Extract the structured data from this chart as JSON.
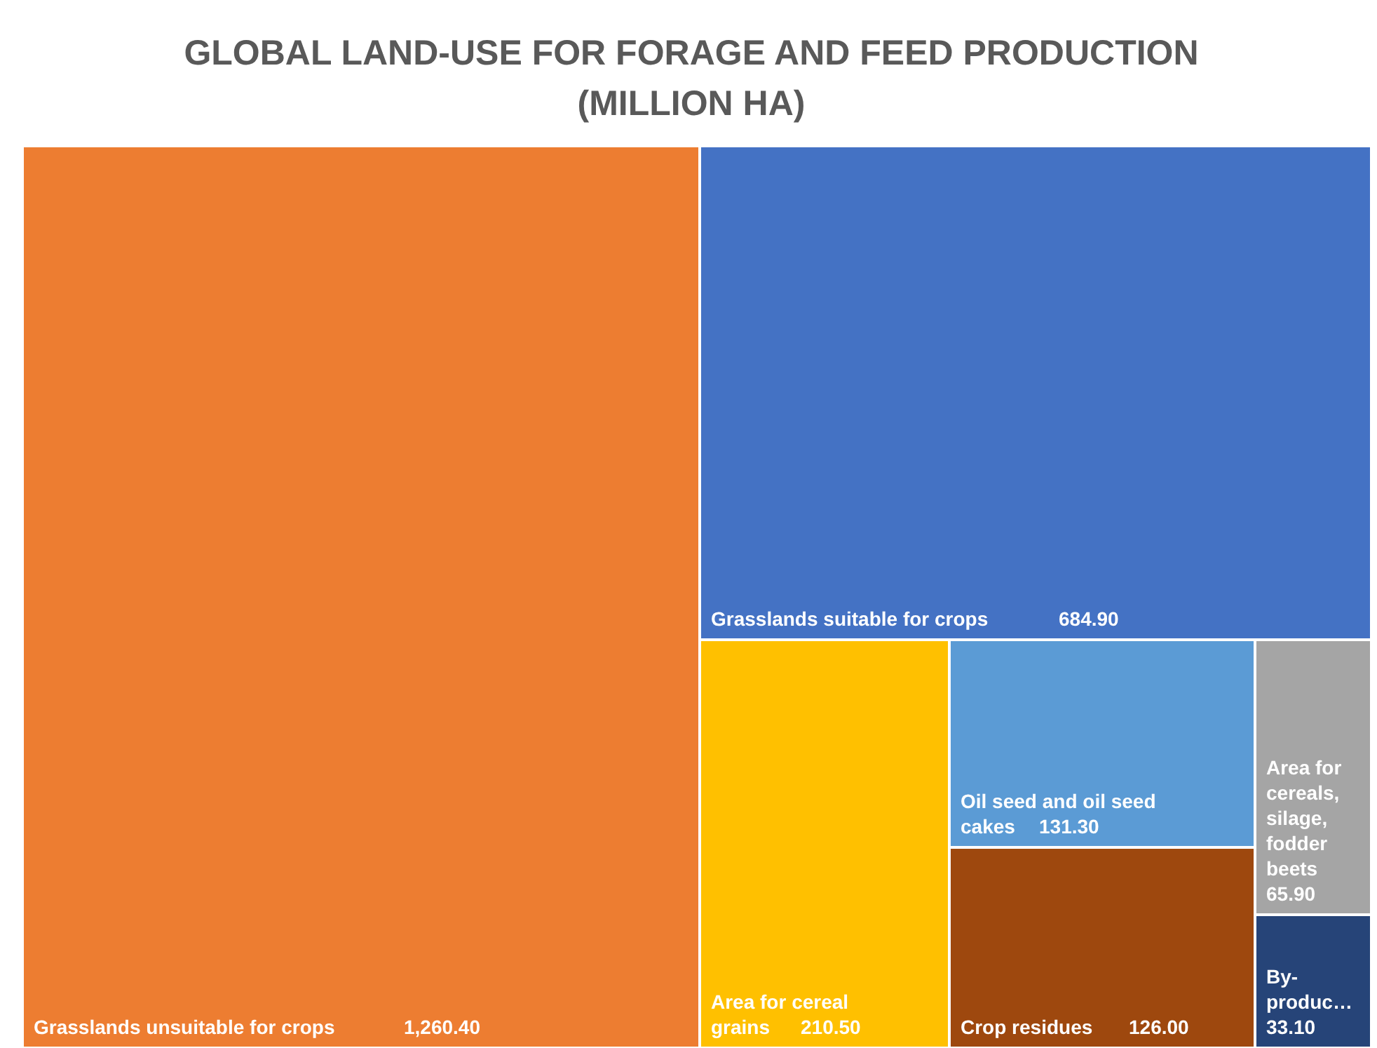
{
  "chart_data": {
    "type": "other",
    "title": "GLOBAL LAND-USE FOR FORAGE AND FEED PRODUCTION (MILLION HA)",
    "categories": [
      "Grasslands unsuitable for crops",
      "Grasslands suitable for crops",
      "Area for cereal grains",
      "Oil seed and oil seed cakes",
      "Crop residues",
      "Area for cereals, silage, fodder beets",
      "By-produc…"
    ],
    "value_labels": [
      "1,260.40",
      "684.90",
      "210.50",
      "131.30",
      "126.00",
      "65.90",
      "33.10"
    ],
    "values": [
      1260.4,
      684.9,
      210.5,
      131.3,
      126.0,
      65.9,
      33.1
    ],
    "colors": [
      "#ed7d31",
      "#4472c4",
      "#ffc000",
      "#5b9bd5",
      "#9e480e",
      "#a5a5a5",
      "#264478"
    ],
    "data_labels": true
  }
}
